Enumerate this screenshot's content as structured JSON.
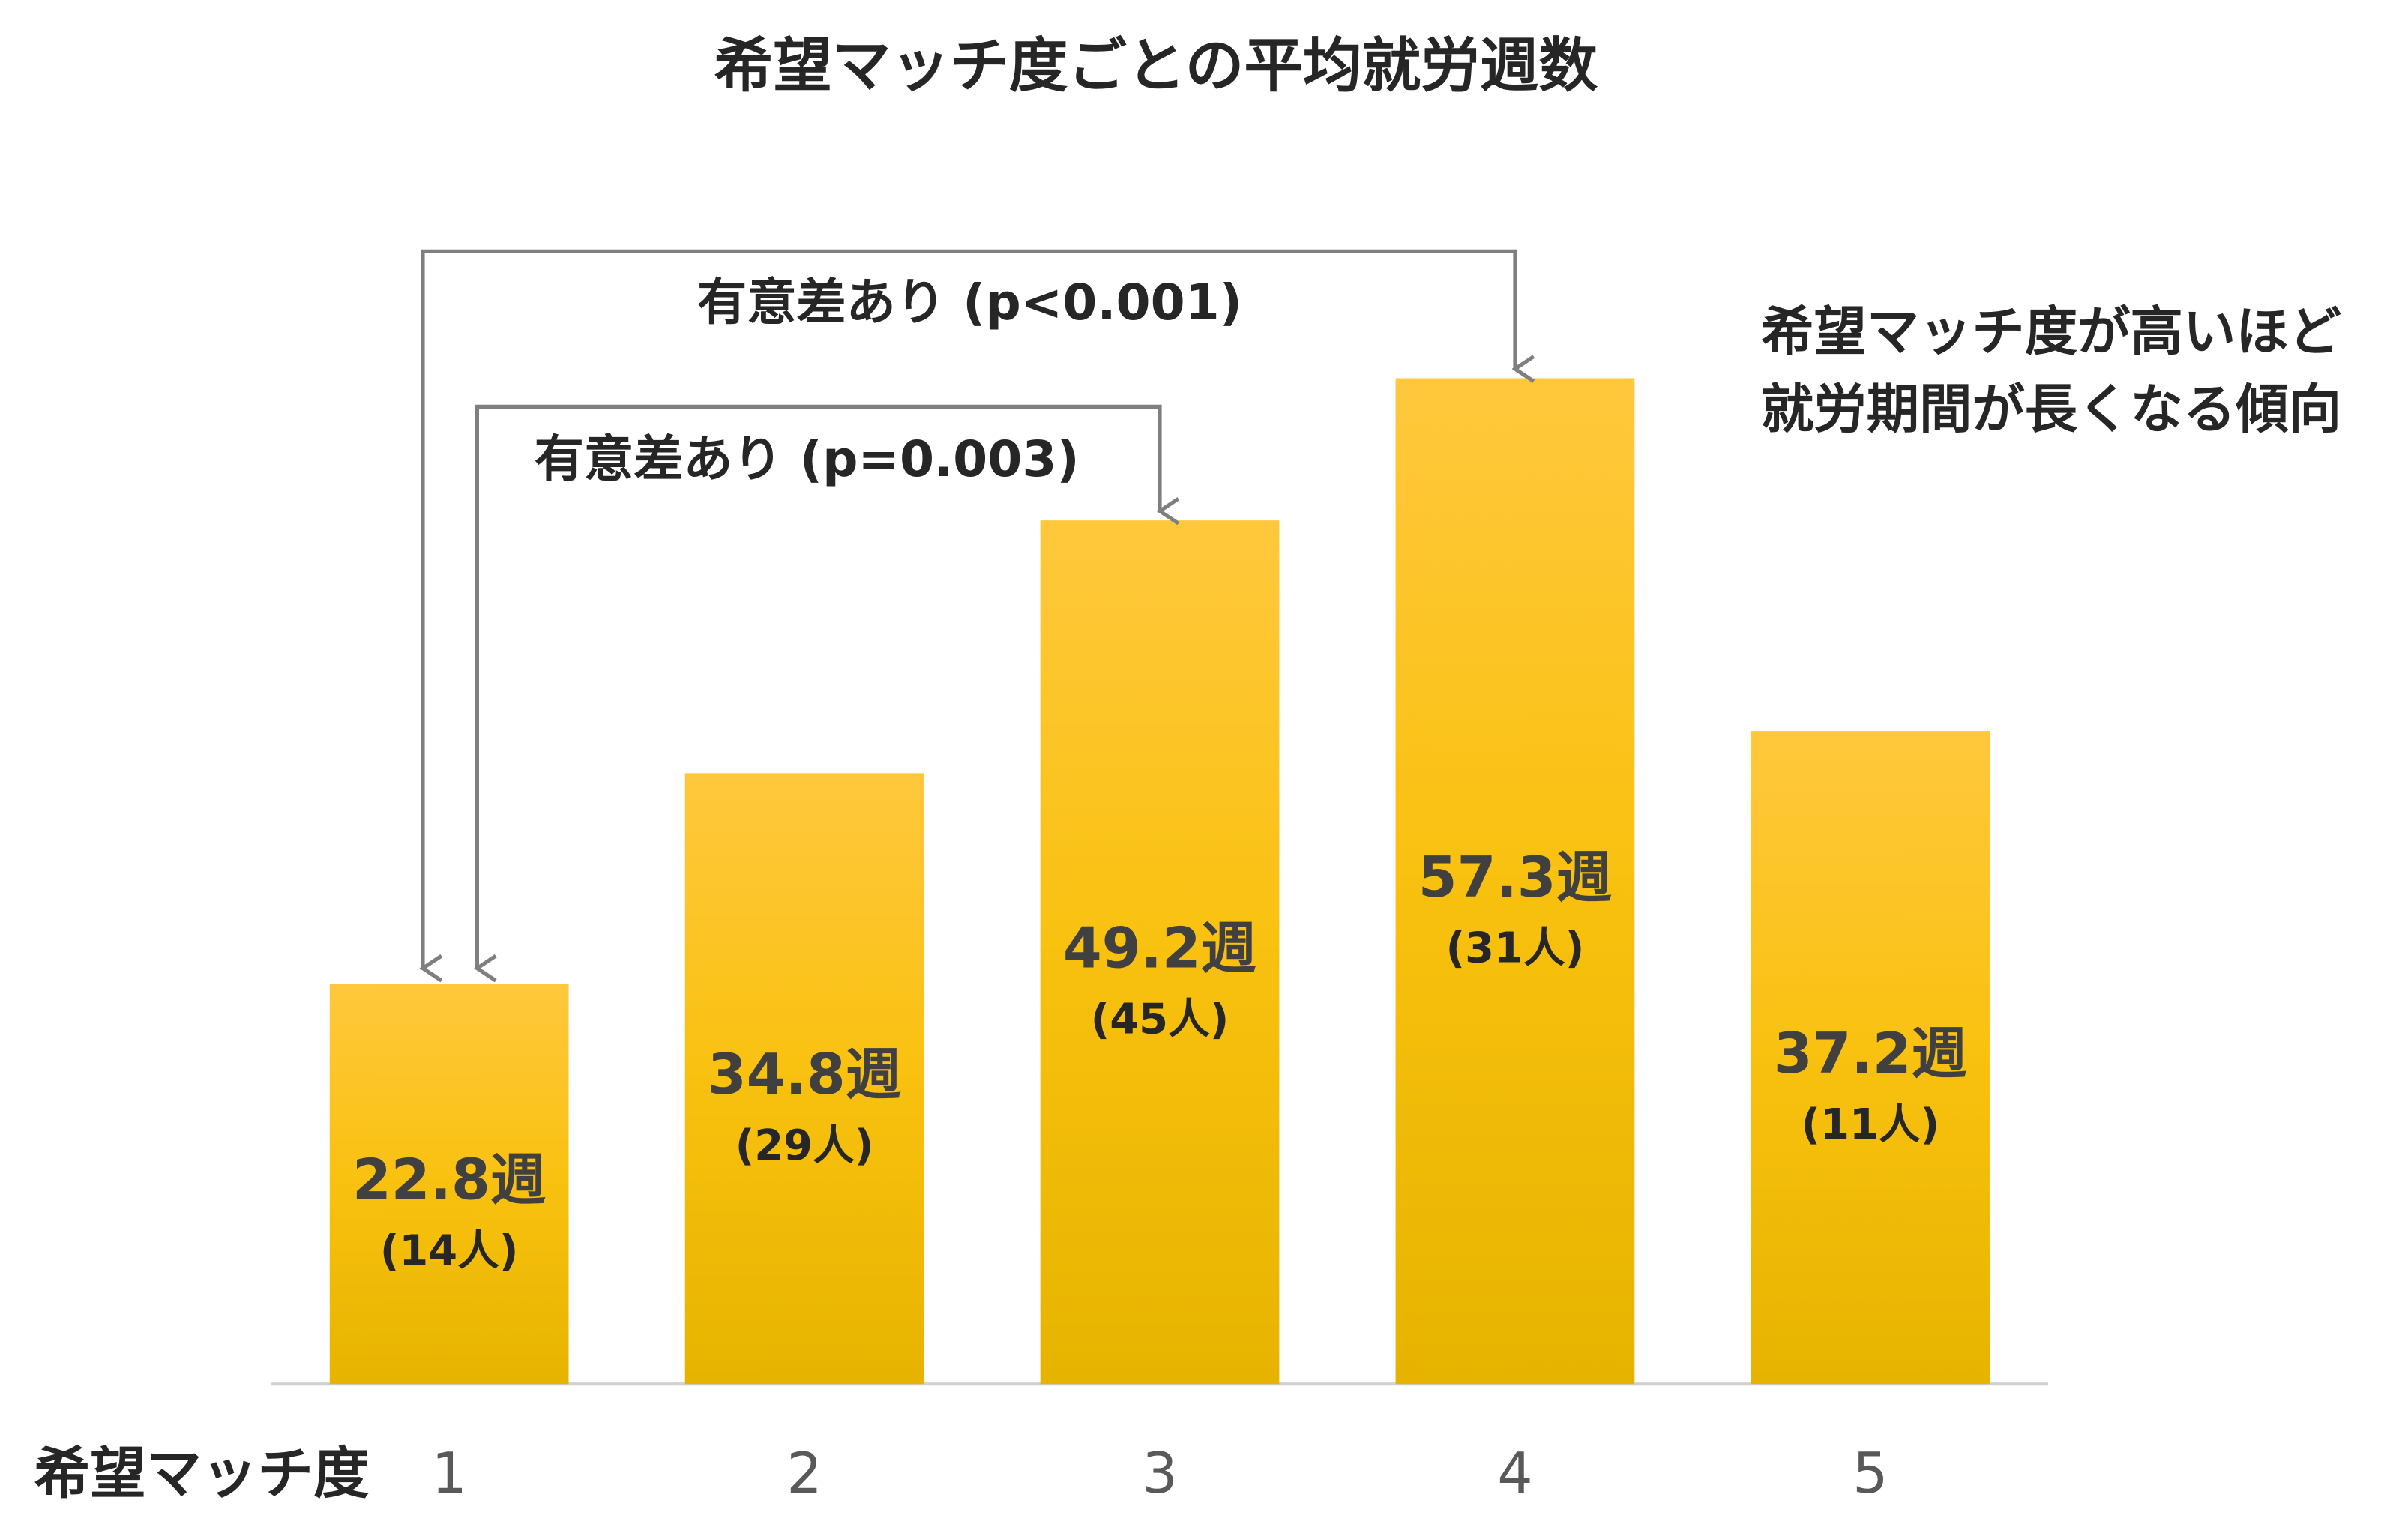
{
  "chart_data": {
    "type": "bar",
    "title": "希望マッチ度ごとの平均就労週数",
    "x_label": "希望マッチ度",
    "categories": [
      "1",
      "2",
      "3",
      "4",
      "5"
    ],
    "values": [
      22.8,
      34.8,
      49.2,
      57.3,
      37.2
    ],
    "value_labels": [
      "22.8週",
      "34.8週",
      "49.2週",
      "57.3週",
      "37.2週"
    ],
    "count_labels": [
      "(14人)",
      "(29人)",
      "(45人)",
      "(31人)",
      "(11人)"
    ],
    "color": "#f5bd12",
    "ylim": [
      0,
      70
    ],
    "annotations": [
      "有意差あり (p<0.001)",
      "有意差あり (p=0.003)"
    ],
    "note": [
      "希望マッチ度が高いほど",
      "就労期間が長くなる傾向"
    ]
  }
}
